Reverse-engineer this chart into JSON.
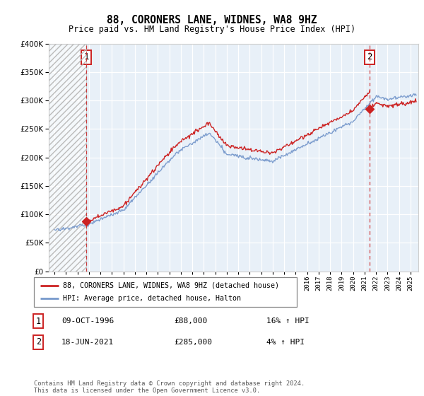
{
  "title": "88, CORONERS LANE, WIDNES, WA8 9HZ",
  "subtitle": "Price paid vs. HM Land Registry's House Price Index (HPI)",
  "sale1_date": "09-OCT-1996",
  "sale1_price": 88000,
  "sale1_hpi": "16% ↑ HPI",
  "sale1_x": 1996.77,
  "sale2_date": "18-JUN-2021",
  "sale2_price": 285000,
  "sale2_hpi": "4% ↑ HPI",
  "sale2_x": 2021.46,
  "legend_line1": "88, CORONERS LANE, WIDNES, WA8 9HZ (detached house)",
  "legend_line2": "HPI: Average price, detached house, Halton",
  "footer": "Contains HM Land Registry data © Crown copyright and database right 2024.\nThis data is licensed under the Open Government Licence v3.0.",
  "xmin": 1993.5,
  "xmax": 2025.7,
  "ymin": 0,
  "ymax": 400000,
  "hatch_xmax": 1996.77,
  "red_color": "#cc2222",
  "blue_color": "#7799cc",
  "bg_color": "#ddeeff",
  "plot_bg": "#e8f0f8"
}
